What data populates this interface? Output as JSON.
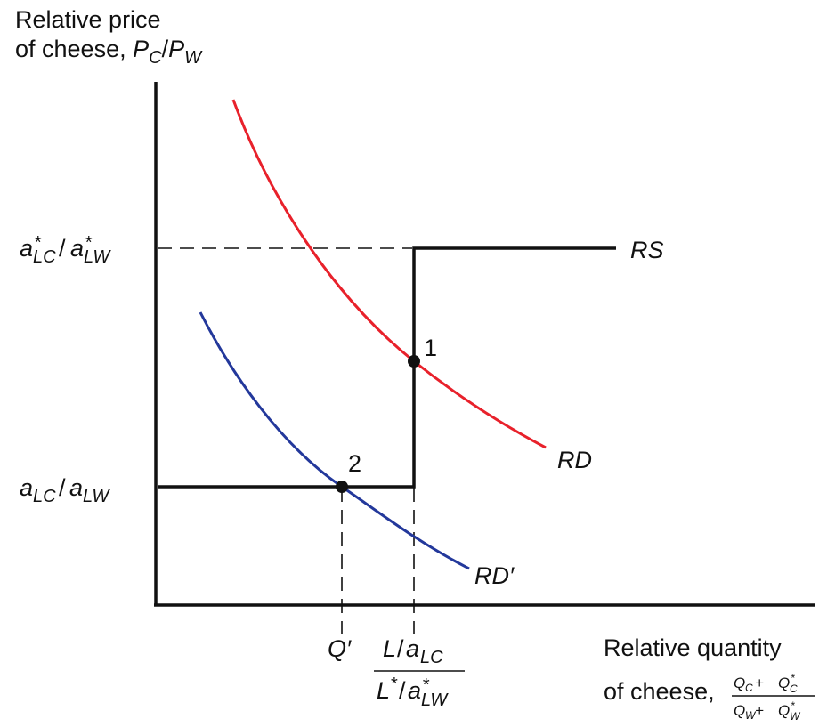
{
  "y_axis": {
    "title_line1": "Relative price",
    "title_line2_prefix": "of cheese, ",
    "title_P": "P",
    "title_C": "C",
    "title_slash": "/",
    "title_W": "W"
  },
  "x_axis": {
    "title_line1": "Relative quantity",
    "title_line2_prefix": "of cheese,",
    "frac_num": "Q",
    "frac_num_c": "C",
    "frac_plus": " + ",
    "frac_star": "*",
    "frac_den": "Q",
    "frac_den_w": "W"
  },
  "ticks": {
    "upper_a": "a",
    "upper_star": "*",
    "upper_lc": "LC",
    "upper_slash": "/",
    "upper_lw": "LW",
    "lower_a": "a",
    "lower_lc": "LC",
    "lower_slash": "/",
    "lower_lw": "LW",
    "q_prime": "Q′",
    "x_num_L": "L",
    "x_num_slash": "/",
    "x_num_a": "a",
    "x_num_lc": "LC",
    "x_den_L": "L",
    "x_den_star": "*",
    "x_den_slash": "/",
    "x_den_a": "a",
    "x_den_lw": "LW"
  },
  "curves": {
    "rs_label": "RS",
    "rd_label": "RD",
    "rd_prime_label": "RD′"
  },
  "points": {
    "point1": "1",
    "point2": "2"
  },
  "colors": {
    "axes": "#111111",
    "rs": "#111111",
    "rd": "#e8212b",
    "rd_prime": "#23389b"
  }
}
